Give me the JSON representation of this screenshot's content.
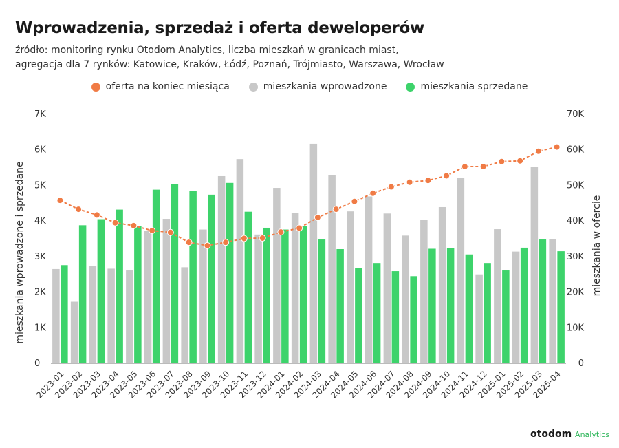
{
  "header": {
    "title": "Wprowadzenia, sprzedaż i oferta deweloperów",
    "subtitle_line1": "źródło: monitoring rynku Otodom Analytics, liczba mieszkań w granicach miast,",
    "subtitle_line2": "agregacja dla 7 rynków: Katowice, Kraków, Łódź, Poznań, Trójmiasto, Warszawa, Wrocław"
  },
  "legend": [
    {
      "label": "oferta na koniec miesiąca",
      "color": "#f07b45"
    },
    {
      "label": "mieszkania wprowadzone",
      "color": "#c8c8c8"
    },
    {
      "label": "mieszkania sprzedane",
      "color": "#3dd36b"
    }
  ],
  "logo": {
    "brand": "otodom",
    "sub": "Analytics"
  },
  "chart_data": {
    "type": "bar",
    "categories": [
      "2023-01",
      "2023-02",
      "2023-03",
      "2023-04",
      "2023-05",
      "2023-06",
      "2023-07",
      "2023-08",
      "2023-09",
      "2023-10",
      "2023-11",
      "2023-12",
      "2024-01",
      "2024-02",
      "2024-03",
      "2024-04",
      "2024-05",
      "2024-06",
      "2024-07",
      "2024-08",
      "2024-09",
      "2024-10",
      "2024-11",
      "2024-12",
      "2025-01",
      "2025-02",
      "2025-03",
      "2025-04"
    ],
    "series": [
      {
        "name": "mieszkania wprowadzone",
        "type": "bar",
        "axis": "left",
        "color": "#c8c8c8",
        "values": [
          2650,
          1730,
          2730,
          2660,
          2610,
          3720,
          4060,
          2700,
          3760,
          5260,
          5740,
          3620,
          4930,
          4220,
          6170,
          5290,
          4270,
          4690,
          4210,
          3590,
          4030,
          4390,
          5210,
          2500,
          3770,
          3140,
          5530,
          3490
        ]
      },
      {
        "name": "mieszkania sprzedane",
        "type": "bar",
        "axis": "left",
        "color": "#3dd36b",
        "values": [
          2760,
          3880,
          4050,
          4320,
          3860,
          4880,
          5040,
          4840,
          4740,
          5070,
          4260,
          3810,
          3760,
          3860,
          3480,
          3210,
          2680,
          2820,
          2590,
          2450,
          3220,
          3230,
          3060,
          2820,
          2610,
          3250,
          3480,
          3150
        ]
      },
      {
        "name": "oferta na koniec miesiąca",
        "type": "line",
        "axis": "right",
        "color": "#f07b45",
        "values": [
          45800,
          43300,
          41700,
          39500,
          38700,
          37300,
          36800,
          34000,
          33100,
          34000,
          35100,
          35200,
          36900,
          38000,
          41000,
          43300,
          45500,
          47800,
          49600,
          50900,
          51400,
          52700,
          55300,
          55300,
          56700,
          56900,
          59600,
          60800
        ]
      }
    ],
    "y_left": {
      "label": "mieszkania wprowadzone i sprzedane",
      "ylim": [
        0,
        7000
      ],
      "ticks": [
        "0",
        "1K",
        "2K",
        "3K",
        "4K",
        "5K",
        "6K",
        "7K"
      ]
    },
    "y_right": {
      "label": "mieszkania w ofercie",
      "ylim": [
        0,
        70000
      ],
      "ticks": [
        "0",
        "10K",
        "20K",
        "30K",
        "40K",
        "50K",
        "60K",
        "70K"
      ]
    },
    "grid": false,
    "legend_position": "top-center"
  }
}
